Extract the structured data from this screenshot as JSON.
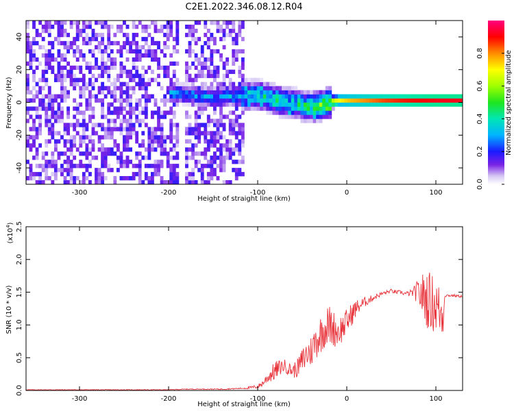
{
  "figure_title": "C2E1.2022.346.08.12.R04",
  "chart_data": [
    {
      "type": "heatmap",
      "xlabel": "Height of straight line (km)",
      "ylabel": "Frequency (Hz)",
      "xlim": [
        -360,
        130
      ],
      "ylim": [
        -50,
        50
      ],
      "x_ticks": [
        -300,
        -200,
        -100,
        0,
        100
      ],
      "y_ticks": [
        -40,
        -20,
        0,
        20,
        40
      ],
      "colorbar": {
        "label": "Normalized spectral amplitude",
        "range": [
          0,
          1
        ],
        "ticks": [
          0.0,
          0.2,
          0.4,
          0.6,
          0.8
        ]
      },
      "ridge": {
        "x": [
          -190,
          -150,
          -120,
          -100,
          -90,
          -80,
          -70,
          -60,
          -50,
          -40,
          -30,
          -20,
          -10,
          0,
          20,
          40,
          60,
          80,
          100,
          130
        ],
        "y": [
          4,
          2,
          3,
          3,
          2,
          0,
          -1,
          -2,
          -3,
          -4,
          -3,
          -1,
          0,
          0,
          0,
          0,
          0,
          0,
          0,
          0
        ],
        "amplitude": [
          0.3,
          0.3,
          0.35,
          0.42,
          0.4,
          0.45,
          0.35,
          0.4,
          0.45,
          0.5,
          0.55,
          0.65,
          0.7,
          0.75,
          0.8,
          0.85,
          0.88,
          0.9,
          0.92,
          0.92
        ]
      },
      "noise_level": 0.15
    },
    {
      "type": "line",
      "xlabel": "Height of straight line (km)",
      "ylabel": "SNR (10 * v/v)",
      "y_scale_label": "(x10",
      "y_scale_exponent": "4",
      "y_scale_close": ")",
      "xlim": [
        -360,
        130
      ],
      "ylim": [
        0,
        2.5
      ],
      "x_ticks": [
        -300,
        -200,
        -100,
        0,
        100
      ],
      "y_ticks": [
        0.0,
        0.5,
        1.0,
        1.5,
        2.0,
        2.5
      ],
      "series": [
        {
          "color": "#e8323a",
          "x": [
            -360,
            -340,
            -320,
            -300,
            -280,
            -260,
            -240,
            -220,
            -200,
            -180,
            -160,
            -140,
            -120,
            -110,
            -100,
            -95,
            -90,
            -85,
            -80,
            -75,
            -70,
            -65,
            -60,
            -55,
            -50,
            -45,
            -40,
            -35,
            -30,
            -25,
            -20,
            -15,
            -10,
            -5,
            0,
            5,
            10,
            15,
            20,
            25,
            30,
            35,
            40,
            45,
            50,
            55,
            60,
            65,
            70,
            75,
            80,
            85,
            90,
            95,
            100,
            105,
            108,
            110,
            115,
            120,
            125,
            130
          ],
          "y": [
            0.01,
            0.01,
            0.01,
            0.01,
            0.01,
            0.01,
            0.01,
            0.01,
            0.01,
            0.02,
            0.02,
            0.02,
            0.03,
            0.04,
            0.06,
            0.1,
            0.18,
            0.25,
            0.3,
            0.35,
            0.38,
            0.33,
            0.3,
            0.35,
            0.45,
            0.55,
            0.6,
            0.75,
            0.85,
            0.95,
            1.0,
            0.95,
            0.9,
            0.95,
            1.05,
            1.15,
            1.25,
            1.3,
            1.35,
            1.38,
            1.42,
            1.45,
            1.48,
            1.5,
            1.52,
            1.5,
            1.5,
            1.48,
            1.48,
            1.5,
            1.5,
            1.45,
            1.4,
            1.35,
            1.3,
            1.2,
            1.15,
            1.45,
            1.45,
            1.45,
            1.44,
            1.44
          ],
          "noise": [
            0.005,
            0.005,
            0.005,
            0.005,
            0.005,
            0.005,
            0.005,
            0.005,
            0.006,
            0.006,
            0.006,
            0.008,
            0.01,
            0.02,
            0.03,
            0.05,
            0.08,
            0.12,
            0.15,
            0.12,
            0.1,
            0.1,
            0.12,
            0.14,
            0.2,
            0.25,
            0.25,
            0.28,
            0.3,
            0.3,
            0.32,
            0.28,
            0.25,
            0.22,
            0.2,
            0.18,
            0.14,
            0.1,
            0.08,
            0.06,
            0.05,
            0.04,
            0.03,
            0.03,
            0.03,
            0.03,
            0.03,
            0.03,
            0.04,
            0.08,
            0.2,
            0.35,
            0.45,
            0.45,
            0.45,
            0.4,
            0.35,
            0.02,
            0.02,
            0.02,
            0.02,
            0.02
          ]
        }
      ]
    }
  ]
}
